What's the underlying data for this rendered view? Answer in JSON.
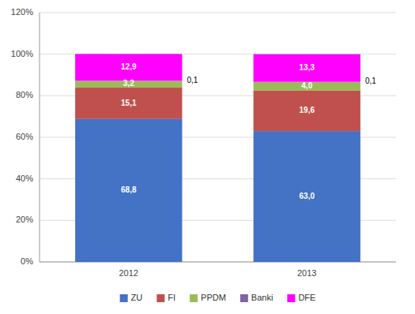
{
  "chart_data": {
    "type": "bar",
    "stacked": true,
    "data_labels": true,
    "grid": true,
    "legend": "bottom",
    "categories": [
      "2012",
      "2013"
    ],
    "series": [
      {
        "name": "ZU",
        "color": "#4472C4",
        "values": [
          68.8,
          63.0
        ],
        "value_labels": [
          "68,8",
          "63,0"
        ]
      },
      {
        "name": "FI",
        "color": "#C0504D",
        "values": [
          15.1,
          19.6
        ],
        "value_labels": [
          "15,1",
          "19,6"
        ]
      },
      {
        "name": "PPDM",
        "color": "#9BBB59",
        "values": [
          3.2,
          4.0
        ],
        "value_labels": [
          "3,2",
          "4,0"
        ]
      },
      {
        "name": "Banki",
        "color": "#8064A2",
        "values": [
          0.1,
          0.1
        ],
        "value_labels": [
          "0,1",
          "0,1"
        ]
      },
      {
        "name": "DFE",
        "color": "#FF00FF",
        "values": [
          12.9,
          13.3
        ],
        "value_labels": [
          "12,9",
          "13,3"
        ]
      }
    ],
    "ylim": [
      0,
      120
    ],
    "yticks": [
      {
        "value": 0,
        "label": "0%"
      },
      {
        "value": 20,
        "label": "20%"
      },
      {
        "value": 40,
        "label": "40%"
      },
      {
        "value": 60,
        "label": "60%"
      },
      {
        "value": 80,
        "label": "80%"
      },
      {
        "value": 100,
        "label": "100%"
      },
      {
        "value": 120,
        "label": "120%"
      }
    ]
  }
}
